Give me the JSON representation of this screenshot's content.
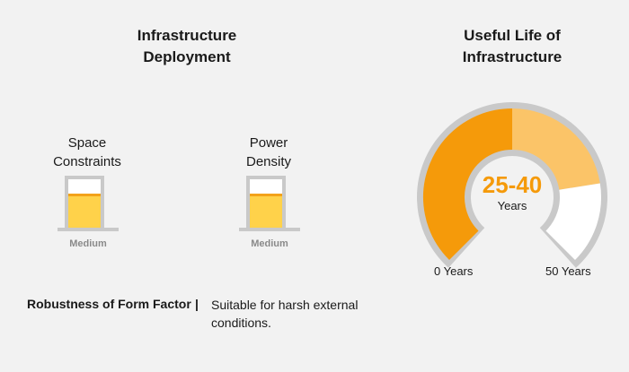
{
  "deployment": {
    "title_line1": "Infrastructure",
    "title_line2": "Deployment",
    "meters": [
      {
        "label_line1": "Space",
        "label_line2": "Constraints",
        "level": "Medium",
        "fill_fraction": 0.7
      },
      {
        "label_line1": "Power",
        "label_line2": "Density",
        "level": "Medium",
        "fill_fraction": 0.7
      }
    ]
  },
  "useful_life": {
    "title_line1": "Useful Life of",
    "title_line2": "Infrastructure",
    "gauge": {
      "value": "25-40",
      "unit": "Years",
      "min_label": "0 Years",
      "max_label": "50 Years",
      "min": 0,
      "max": 50,
      "range_low": 25,
      "range_high": 40,
      "colors": {
        "to_low": "#f59a0a",
        "range": "#fbc468",
        "rest": "#ffffff",
        "outline": "#c9c9c9"
      }
    }
  },
  "robustness": {
    "label": "Robustness of Form Factor",
    "separator": "|",
    "value_line1": "Suitable for harsh external",
    "value_line2": "conditions."
  }
}
